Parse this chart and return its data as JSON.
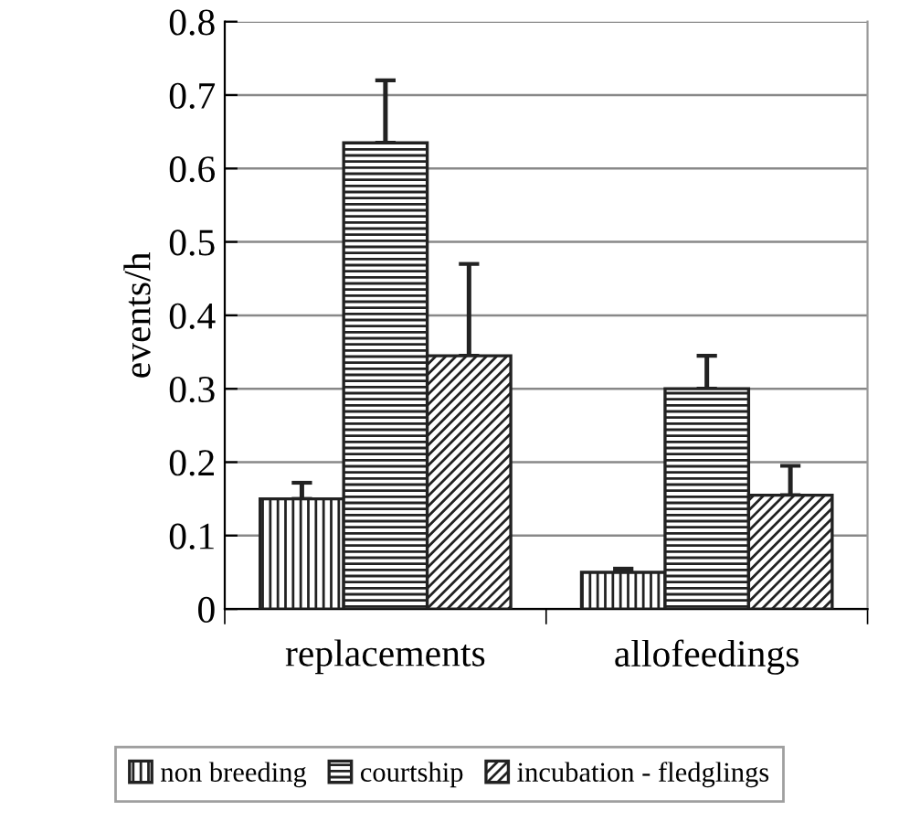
{
  "chart_data": {
    "type": "bar",
    "ylabel": "events/h",
    "categories": [
      "replacements",
      "allofeedings"
    ],
    "series": [
      {
        "name": "non breeding",
        "color": "#222222",
        "values": [
          0.15,
          0.05
        ],
        "errors": [
          [
            0.15,
            0.172
          ],
          [
            0.05,
            0.055
          ]
        ]
      },
      {
        "name": "courtship",
        "color": "#222222",
        "values": [
          0.635,
          0.3
        ],
        "errors": [
          [
            0.635,
            0.72
          ],
          [
            0.3,
            0.345
          ]
        ]
      },
      {
        "name": "incubation - fledglings",
        "color": "#222222",
        "values": [
          0.345,
          0.155
        ],
        "errors": [
          [
            0.345,
            0.47
          ],
          [
            0.155,
            0.195
          ]
        ]
      }
    ],
    "ylim": [
      0,
      0.8
    ],
    "yticks": [
      0,
      0.1,
      0.2,
      0.3,
      0.4,
      0.5,
      0.6,
      0.7,
      0.8
    ],
    "grid": "y",
    "legend": "bottom"
  }
}
